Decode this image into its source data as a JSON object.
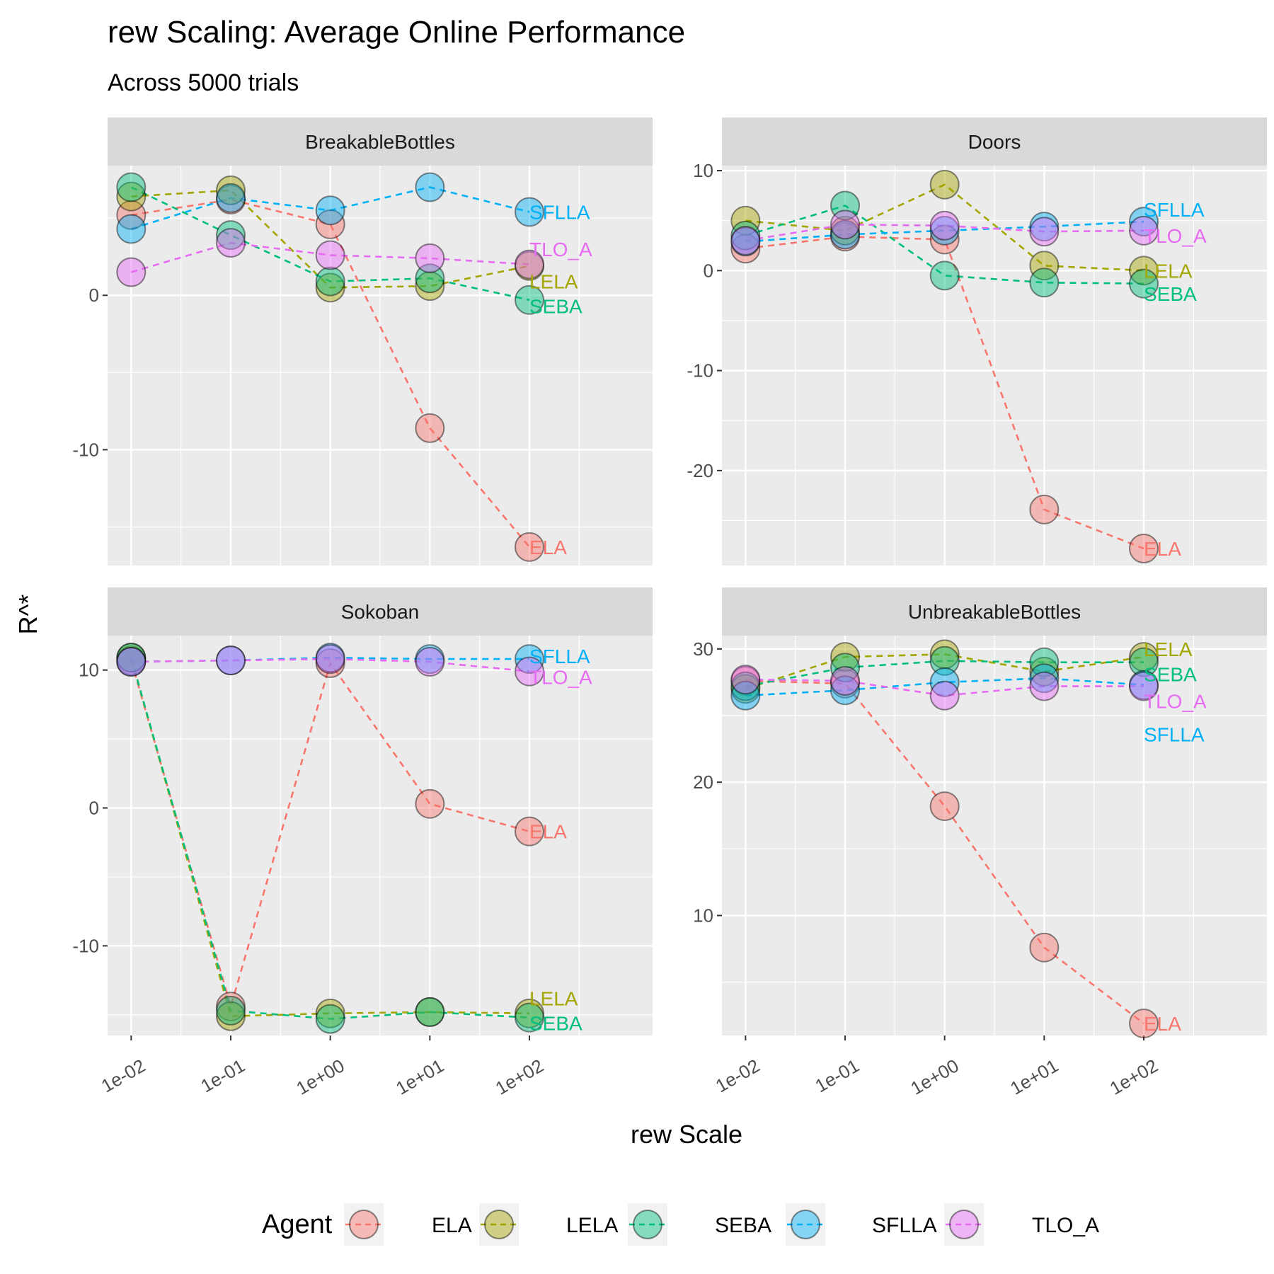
{
  "title": "rew Scaling: Average Online Performance",
  "subtitle": "Across 5000 trials",
  "x_axis_title": "rew Scale",
  "y_axis_title": "R^*",
  "legend": {
    "title": "Agent",
    "entries": [
      {
        "name": "ELA",
        "color": "#F8766D"
      },
      {
        "name": "LELA",
        "color": "#A3A500"
      },
      {
        "name": "SEBA",
        "color": "#00BF7D"
      },
      {
        "name": "SFLLA",
        "color": "#00B0F6"
      },
      {
        "name": "TLO_A",
        "color": "#E76BF3"
      }
    ]
  },
  "chart_data": {
    "type": "line",
    "x_scale": "log10",
    "x": [
      0.01,
      0.1,
      1,
      10,
      100
    ],
    "x_tick_labels": [
      "1e-02",
      "1e-01",
      "1e+00",
      "1e+01",
      "1e+02"
    ],
    "grid": true,
    "legend_position": "bottom",
    "facets": [
      {
        "name": "BreakableBottles",
        "y_ticks": [
          0,
          -10
        ],
        "ylim": [
          -17.5,
          8.4
        ],
        "series": [
          {
            "name": "ELA",
            "values": [
              5.2,
              6.2,
              4.6,
              -8.6,
              -16.3
            ]
          },
          {
            "name": "LELA",
            "values": [
              6.4,
              6.8,
              0.5,
              0.6,
              1.9
            ]
          },
          {
            "name": "SEBA",
            "values": [
              7.0,
              3.9,
              0.9,
              1.1,
              -0.3
            ]
          },
          {
            "name": "SFLLA",
            "values": [
              4.3,
              6.3,
              5.5,
              7.0,
              5.4
            ]
          },
          {
            "name": "TLO_A",
            "values": [
              1.5,
              3.4,
              2.6,
              2.4,
              2.0
            ]
          }
        ],
        "end_labels": [
          {
            "name": "SFLLA",
            "value": 5.4
          },
          {
            "name": "TLO_A",
            "value": 3.0
          },
          {
            "name": "LELA",
            "value": 0.9
          },
          {
            "name": "SEBA",
            "value": -0.7
          },
          {
            "name": "ELA",
            "value": -16.3
          }
        ]
      },
      {
        "name": "Doors",
        "y_ticks": [
          10,
          0,
          -10,
          -20
        ],
        "ylim": [
          -29.5,
          10.5
        ],
        "series": [
          {
            "name": "ELA",
            "values": [
              2.2,
              3.4,
              3.1,
              -23.9,
              -27.8
            ]
          },
          {
            "name": "LELA",
            "values": [
              5.0,
              4.0,
              8.6,
              0.5,
              0.0
            ]
          },
          {
            "name": "SEBA",
            "values": [
              3.5,
              6.5,
              -0.5,
              -1.2,
              -1.3
            ]
          },
          {
            "name": "SFLLA",
            "values": [
              2.9,
              3.6,
              4.0,
              4.4,
              4.9
            ]
          },
          {
            "name": "TLO_A",
            "values": [
              3.0,
              4.6,
              4.5,
              3.9,
              4.0
            ]
          }
        ],
        "end_labels": [
          {
            "name": "SFLLA",
            "value": 6.1
          },
          {
            "name": "TLO_A",
            "value": 3.5
          },
          {
            "name": "LELA",
            "value": 0.0
          },
          {
            "name": "SEBA",
            "value": -2.3
          },
          {
            "name": "ELA",
            "value": -27.8
          }
        ]
      },
      {
        "name": "Sokoban",
        "y_ticks": [
          10,
          0,
          -10
        ],
        "ylim": [
          -16.5,
          12.5
        ],
        "series": [
          {
            "name": "ELA",
            "values": [
              10.7,
              -14.4,
              10.5,
              0.3,
              -1.7
            ]
          },
          {
            "name": "LELA",
            "values": [
              10.9,
              -15.1,
              -14.9,
              -14.8,
              -14.9
            ]
          },
          {
            "name": "SEBA",
            "values": [
              10.9,
              -14.7,
              -15.3,
              -14.8,
              -15.2
            ]
          },
          {
            "name": "SFLLA",
            "values": [
              10.6,
              10.7,
              10.9,
              10.8,
              10.8
            ]
          },
          {
            "name": "TLO_A",
            "values": [
              10.6,
              10.7,
              10.8,
              10.6,
              9.9
            ]
          }
        ],
        "end_labels": [
          {
            "name": "SFLLA",
            "value": 11.0
          },
          {
            "name": "TLO_A",
            "value": 9.5
          },
          {
            "name": "ELA",
            "value": -1.7
          },
          {
            "name": "LELA",
            "value": -13.8
          },
          {
            "name": "SEBA",
            "value": -15.6
          }
        ]
      },
      {
        "name": "UnbreakableBottles",
        "y_ticks": [
          30,
          20,
          10
        ],
        "ylim": [
          1.0,
          31.0
        ],
        "series": [
          {
            "name": "ELA",
            "values": [
              27.6,
              27.4,
              18.2,
              7.6,
              1.9
            ]
          },
          {
            "name": "LELA",
            "values": [
              27.0,
              29.4,
              29.6,
              28.3,
              29.4
            ]
          },
          {
            "name": "SEBA",
            "values": [
              27.2,
              28.6,
              29.1,
              29.0,
              29.0
            ]
          },
          {
            "name": "SFLLA",
            "values": [
              26.5,
              26.9,
              27.5,
              27.8,
              27.3
            ]
          },
          {
            "name": "TLO_A",
            "values": [
              27.7,
              27.6,
              26.5,
              27.2,
              27.2
            ]
          }
        ],
        "end_labels": [
          {
            "name": "LELA",
            "value": 30.0
          },
          {
            "name": "SEBA",
            "value": 28.1
          },
          {
            "name": "TLO_A",
            "value": 26.1
          },
          {
            "name": "SFLLA",
            "value": 23.6
          },
          {
            "name": "ELA",
            "value": 1.9
          }
        ]
      }
    ]
  }
}
